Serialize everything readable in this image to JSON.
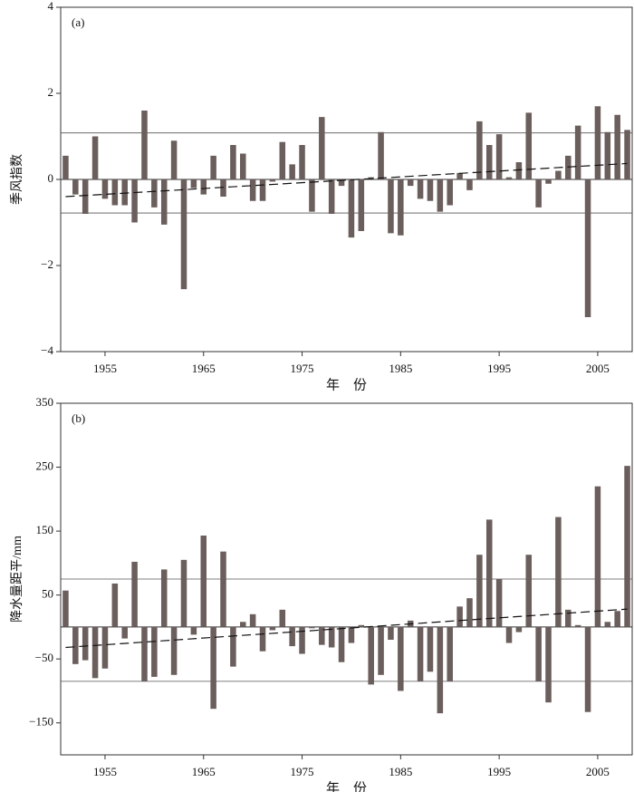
{
  "chart_data": [
    {
      "type": "bar",
      "panel_label": "(a)",
      "y_label": "季风指数",
      "x_label": "年　份",
      "color": "#6b5f5d",
      "x": [
        1951,
        1952,
        1953,
        1954,
        1955,
        1956,
        1957,
        1958,
        1959,
        1960,
        1961,
        1962,
        1963,
        1964,
        1965,
        1966,
        1967,
        1968,
        1969,
        1970,
        1971,
        1972,
        1973,
        1974,
        1975,
        1976,
        1977,
        1978,
        1979,
        1980,
        1981,
        1982,
        1983,
        1984,
        1985,
        1986,
        1987,
        1988,
        1989,
        1990,
        1991,
        1992,
        1993,
        1994,
        1995,
        1996,
        1997,
        1998,
        1999,
        2000,
        2001,
        2002,
        2003,
        2004,
        2005,
        2006,
        2007,
        2008
      ],
      "values": [
        0.55,
        -0.35,
        -0.8,
        1.0,
        -0.45,
        -0.6,
        -0.6,
        -1.0,
        1.6,
        -0.65,
        -1.05,
        0.9,
        -2.55,
        -0.2,
        -0.35,
        0.55,
        -0.4,
        0.8,
        0.6,
        -0.5,
        -0.5,
        -0.05,
        0.87,
        0.35,
        0.8,
        -0.75,
        1.45,
        -0.8,
        -0.15,
        -1.35,
        -1.2,
        0.05,
        1.1,
        -1.25,
        -1.3,
        -0.15,
        -0.45,
        -0.5,
        -0.75,
        -0.6,
        0.15,
        -0.25,
        1.35,
        0.8,
        1.05,
        0.05,
        0.4,
        1.55,
        -0.65,
        -0.1,
        0.2,
        0.55,
        1.25,
        -3.2,
        1.7,
        1.1,
        1.5,
        1.15
      ],
      "reference_lines": [
        1.08,
        -0.78
      ],
      "trend": [
        -0.4,
        0.37
      ],
      "xlim": [
        1950.5,
        2008.5
      ],
      "xticks": [
        1955,
        1965,
        1975,
        1985,
        1995,
        2005
      ],
      "ylim": [
        -4,
        4
      ],
      "yticks": [
        {
          "value": -4,
          "label": "−4"
        },
        {
          "value": -2,
          "label": "−2"
        },
        0,
        2,
        4
      ]
    },
    {
      "type": "bar",
      "panel_label": "(b)",
      "y_label": "降水量距平/mm",
      "x_label": "年　份",
      "color": "#6b5f5d",
      "x": [
        1951,
        1952,
        1953,
        1954,
        1955,
        1956,
        1957,
        1958,
        1959,
        1960,
        1961,
        1962,
        1963,
        1964,
        1965,
        1966,
        1967,
        1968,
        1969,
        1970,
        1971,
        1972,
        1973,
        1974,
        1975,
        1976,
        1977,
        1978,
        1979,
        1980,
        1981,
        1982,
        1983,
        1984,
        1985,
        1986,
        1987,
        1988,
        1989,
        1990,
        1991,
        1992,
        1993,
        1994,
        1995,
        1996,
        1997,
        1998,
        1999,
        2000,
        2001,
        2002,
        2003,
        2004,
        2005,
        2006,
        2007,
        2008
      ],
      "values": [
        57,
        -58,
        -52,
        -80,
        -65,
        68,
        -18,
        102,
        -85,
        -78,
        90,
        -75,
        105,
        -12,
        143,
        -128,
        118,
        -62,
        8,
        20,
        -38,
        -5,
        27,
        -30,
        -42,
        -2,
        -28,
        -32,
        -55,
        -25,
        3,
        -90,
        -75,
        -20,
        -100,
        10,
        -85,
        -70,
        -135,
        -85,
        32,
        45,
        113,
        168,
        75,
        -25,
        -8,
        113,
        -85,
        -118,
        172,
        27,
        3,
        -133,
        220,
        8,
        25,
        252
      ],
      "reference_lines": [
        75,
        -85
      ],
      "trend": [
        -32,
        28
      ],
      "xlim": [
        1950.5,
        2008.5
      ],
      "xticks": [
        1955,
        1965,
        1975,
        1985,
        1995,
        2005
      ],
      "ylim": [
        -200,
        350
      ],
      "yticks": [
        {
          "value": -150,
          "label": "−150"
        },
        {
          "value": -50,
          "label": "−50"
        },
        50,
        150,
        250,
        350
      ]
    }
  ]
}
